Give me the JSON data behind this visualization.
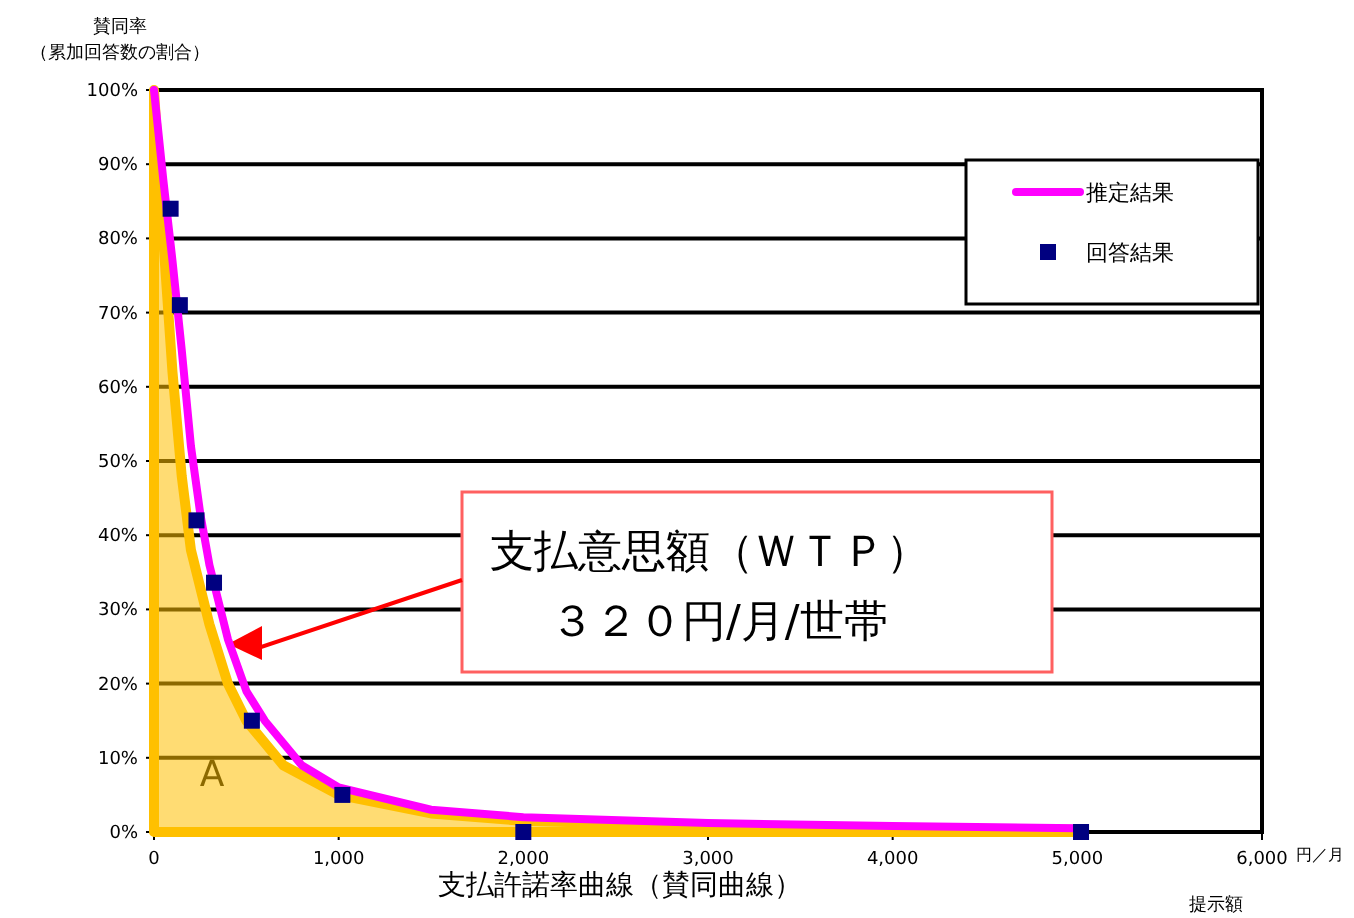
{
  "chart_data": {
    "type": "scatter",
    "title": "支払許諾率曲線（賛同曲線）",
    "xlabel": "提示額",
    "ylabel": "賛同率",
    "xlim": [
      0,
      6000
    ],
    "ylim": [
      0,
      100
    ],
    "xticks": [
      0,
      {
        "value": 1000,
        "label": "1,000"
      },
      {
        "value": 2000,
        "label": "2,000"
      },
      {
        "value": 3000,
        "label": "3,000"
      },
      {
        "value": 4000,
        "label": "4,000"
      },
      {
        "value": 5000,
        "label": "5,000"
      },
      {
        "value": 6000,
        "label": "6,000"
      }
    ],
    "yticks": [
      {
        "value": 0,
        "label": "0%"
      },
      {
        "value": 10,
        "label": "10%"
      },
      {
        "value": 20,
        "label": "20%"
      },
      {
        "value": 30,
        "label": "30%"
      },
      {
        "value": 40,
        "label": "40%"
      },
      {
        "value": 50,
        "label": "50%"
      },
      {
        "value": 60,
        "label": "60%"
      },
      {
        "value": 70,
        "label": "70%"
      },
      {
        "value": 80,
        "label": "80%"
      },
      {
        "value": 90,
        "label": "90%"
      },
      {
        "value": 100,
        "label": "100%"
      }
    ],
    "grid": "y",
    "legend": "top right",
    "series": [
      {
        "type": "area",
        "color": "#ffc000",
        "x": [
          0,
          50,
          100,
          150,
          200,
          300,
          400,
          500,
          700,
          1000,
          1500,
          2000,
          3000,
          5000
        ],
        "values": [
          100,
          80,
          62,
          48,
          38,
          28,
          20,
          15,
          9,
          5,
          2.5,
          1.5,
          0.8,
          0.3
        ]
      },
      {
        "type": "line",
        "name": "推定結果",
        "color": "#ff00ff",
        "x": [
          0,
          50,
          100,
          150,
          200,
          250,
          300,
          400,
          500,
          600,
          800,
          1000,
          1500,
          2000,
          3000,
          4000,
          5000
        ],
        "values": [
          100,
          88,
          77,
          65,
          52,
          43,
          36,
          26,
          19,
          15,
          9,
          6,
          3,
          2,
          1.2,
          0.8,
          0.5
        ]
      },
      {
        "name": "回答結果",
        "color": "#000080",
        "marker": "square",
        "x": [
          90,
          140,
          230,
          325,
          530,
          1020,
          2000,
          5020
        ],
        "values": [
          84,
          71,
          42,
          33.6,
          15,
          5,
          0,
          0
        ]
      }
    ],
    "annotations": [
      "（累加回答数の割合）",
      "支払意思額（ＷＴＰ）",
      "３２０円/月/世帯",
      "A",
      "円／月"
    ]
  }
}
